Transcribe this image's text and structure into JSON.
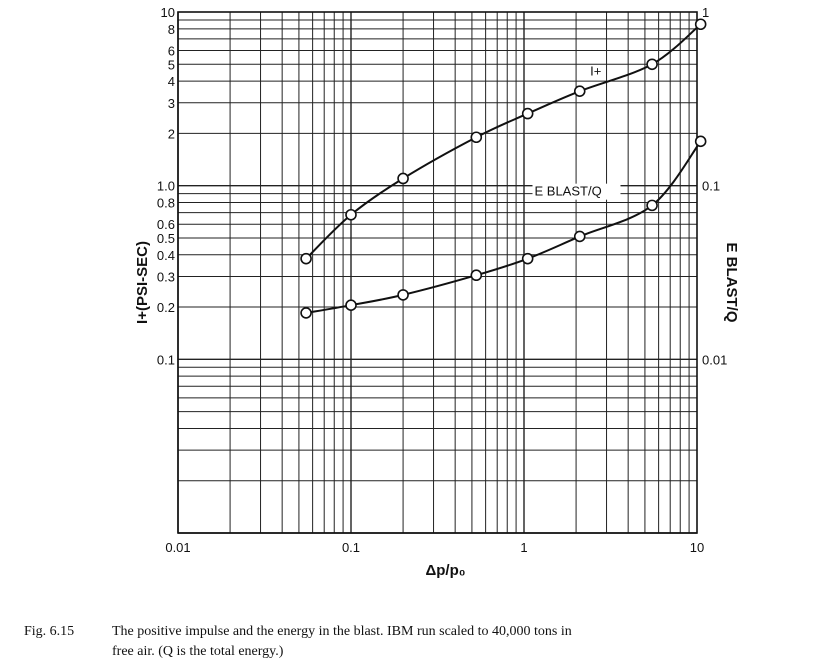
{
  "chart_data": {
    "type": "line",
    "title": "",
    "xlabel": "Δp/p₀",
    "ylabel": "I+(PSI-SEC)",
    "ylabel_right": "E BLAST/Q",
    "x_scale": "log",
    "y_scale": "log",
    "xlim": [
      0.01,
      10
    ],
    "ylim_left": [
      0.01,
      10
    ],
    "ylim_right": [
      0.001,
      1
    ],
    "grid": true,
    "x_ticks": [
      {
        "value": 0.01,
        "label": "0.01"
      },
      {
        "value": 0.1,
        "label": "0.1"
      },
      {
        "value": 1,
        "label": "1"
      },
      {
        "value": 10,
        "label": "10"
      }
    ],
    "y_ticks_left": [
      {
        "value": 10,
        "label": "10"
      },
      {
        "value": 8,
        "label": "8"
      },
      {
        "value": 6,
        "label": "6"
      },
      {
        "value": 5,
        "label": "5"
      },
      {
        "value": 4,
        "label": "4"
      },
      {
        "value": 3,
        "label": "3"
      },
      {
        "value": 2,
        "label": "2"
      },
      {
        "value": 1,
        "label": "1.0"
      },
      {
        "value": 0.8,
        "label": "0.8"
      },
      {
        "value": 0.6,
        "label": "0.6"
      },
      {
        "value": 0.5,
        "label": "0.5"
      },
      {
        "value": 0.4,
        "label": "0.4"
      },
      {
        "value": 0.3,
        "label": "0.3"
      },
      {
        "value": 0.2,
        "label": "0.2"
      },
      {
        "value": 0.1,
        "label": "0.1"
      }
    ],
    "y_ticks_right": [
      {
        "value": 1,
        "label": "1"
      },
      {
        "value": 0.1,
        "label": "0.1"
      },
      {
        "value": 0.01,
        "label": "0.01"
      }
    ],
    "series": [
      {
        "name": "I+",
        "axis": "left",
        "x": [
          0.055,
          0.1,
          0.2,
          0.53,
          1.05,
          2.1,
          5.5,
          10.5
        ],
        "y": [
          0.38,
          0.68,
          1.1,
          1.9,
          2.6,
          3.5,
          5.0,
          8.5
        ]
      },
      {
        "name": "E BLAST/Q",
        "axis": "right",
        "x": [
          0.055,
          0.1,
          0.2,
          0.53,
          1.05,
          2.1,
          5.5,
          10.5
        ],
        "y": [
          0.0185,
          0.0205,
          0.0235,
          0.0305,
          0.038,
          0.051,
          0.077,
          0.18
        ]
      }
    ]
  },
  "caption": {
    "figure_number": "Fig. 6.15",
    "line1": "The positive impulse and the energy in the blast.   IBM  run scaled to 40,000 tons in",
    "line2": "free air.  (Q is the total energy.)"
  }
}
